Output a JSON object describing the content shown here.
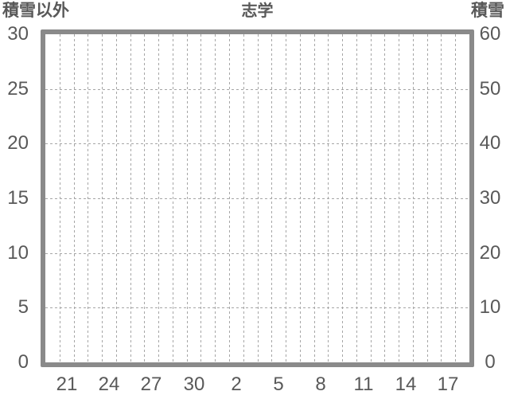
{
  "chart": {
    "title": "志学",
    "left_axis_title": "積雪以外",
    "right_axis_title": "積雪"
  },
  "chart_data": {
    "type": "line",
    "title": "志学",
    "series": [],
    "x_axis": {
      "tick_labels": [
        "21",
        "24",
        "27",
        "30",
        "2",
        "5",
        "8",
        "11",
        "14",
        "17"
      ],
      "label_slot_indices": [
        1,
        4,
        7,
        10,
        13,
        16,
        19,
        22,
        25,
        28
      ],
      "slot_count": 30
    },
    "left_axis": {
      "title": "積雪以外",
      "range": [
        0,
        30
      ],
      "tick_interval": 5,
      "ticks": [
        30,
        25,
        20,
        15,
        10,
        5,
        0
      ]
    },
    "right_axis": {
      "title": "積雪",
      "range": [
        0,
        60
      ],
      "tick_interval": 10,
      "ticks": [
        60,
        50,
        40,
        30,
        20,
        10,
        0
      ]
    },
    "grid": {
      "style": "dashed",
      "vertical_lines": 29,
      "horizontal_lines": 5
    },
    "legend": "none"
  },
  "colors": {
    "text": "#595959",
    "frame": "#8a8a8a",
    "gridline": "#a6a6a6",
    "background": "#ffffff"
  }
}
